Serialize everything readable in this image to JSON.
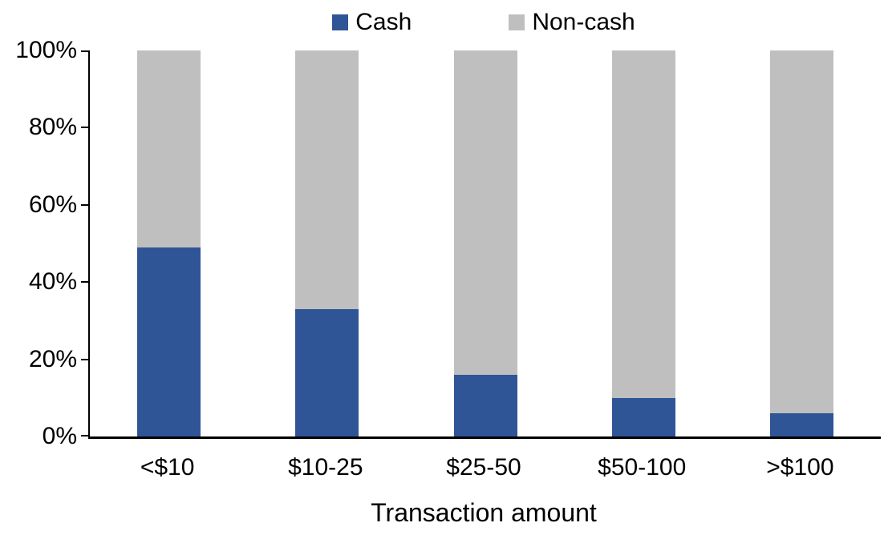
{
  "chart_data": {
    "type": "bar",
    "subtype": "stacked-100-percent",
    "title": "",
    "xlabel": "Transaction amount",
    "ylabel": "",
    "categories": [
      "<$10",
      "$10-25",
      "$25-50",
      "$50-100",
      ">$100"
    ],
    "series": [
      {
        "name": "Cash",
        "color": "#2F5597",
        "values": [
          49,
          33,
          16,
          10,
          6
        ]
      },
      {
        "name": "Non-cash",
        "color": "#BFBFBF",
        "values": [
          51,
          67,
          84,
          90,
          94
        ]
      }
    ],
    "ylim": [
      0,
      100
    ],
    "yticks": [
      "0%",
      "20%",
      "40%",
      "60%",
      "80%",
      "100%"
    ],
    "grid": false,
    "legend_position": "top-center",
    "axis_color": "#000000",
    "background_color": "#FFFFFF"
  }
}
